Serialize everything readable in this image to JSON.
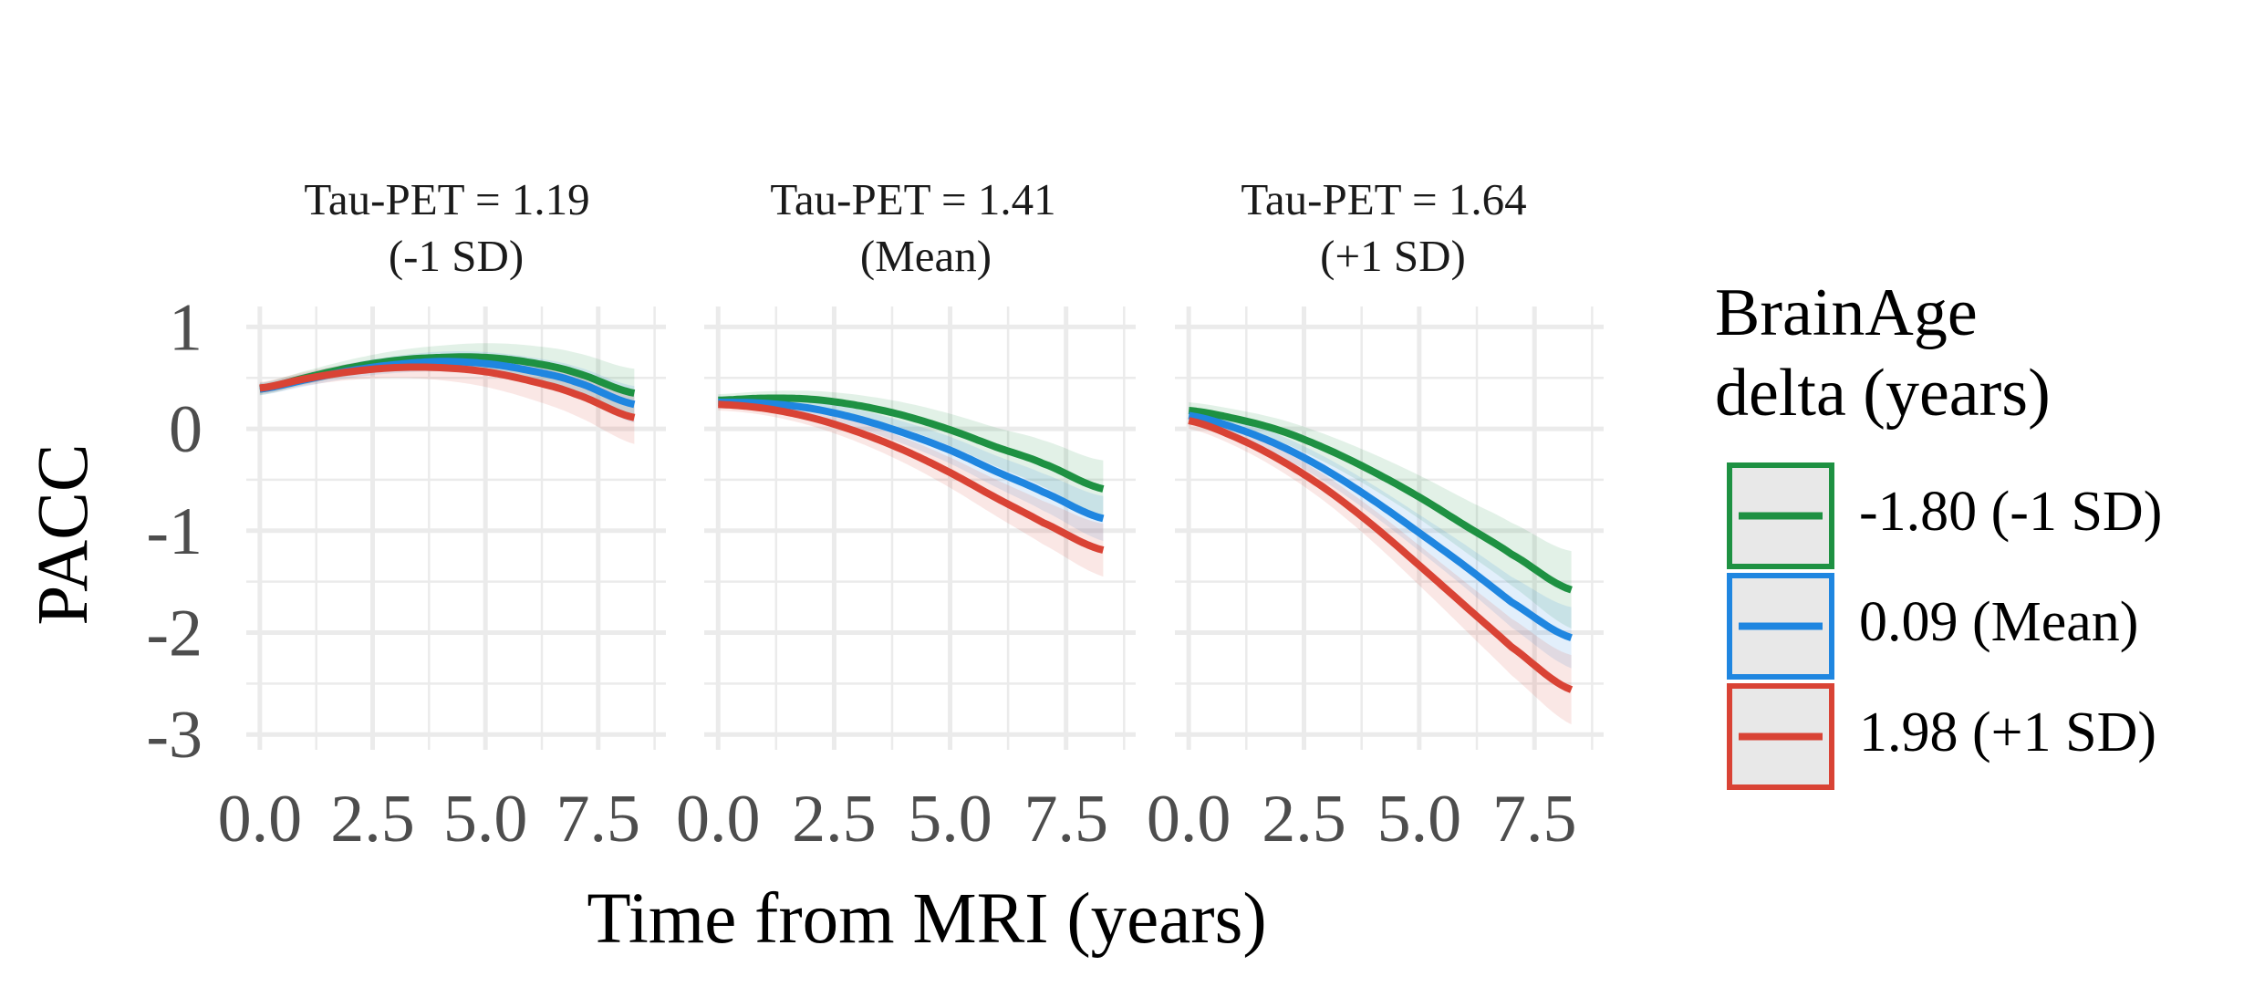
{
  "chart_data": {
    "type": "line",
    "xlabel": "Time from MRI (years)",
    "ylabel": "PACC",
    "xlim": [
      -0.3,
      9.0
    ],
    "ylim": [
      -3.15,
      1.2
    ],
    "x_ticks": [
      "0.0",
      "2.5",
      "5.0",
      "7.5"
    ],
    "y_ticks": [
      "1",
      "0",
      "-1",
      "-2",
      "-3"
    ],
    "x_tick_values": [
      0,
      2.5,
      5,
      7.5
    ],
    "y_tick_values": [
      1,
      0,
      -1,
      -2,
      -3
    ],
    "grid": true,
    "legend": {
      "title_lines": [
        "BrainAge",
        "delta (years)"
      ],
      "placement": "right",
      "entries": [
        {
          "label": "-1.80 (-1 SD)",
          "color": "#1e9142"
        },
        {
          "label": "0.09 (Mean)",
          "color": "#1f86e0"
        },
        {
          "label": "1.98 (+1 SD)",
          "color": "#d94335"
        }
      ]
    },
    "panels": [
      {
        "title_line1": "Tau-PET = 1.19",
        "title_line2": "(-1 SD)",
        "series": [
          {
            "name": "-1.80 (-1 SD)",
            "color": "#1e9142",
            "band_width": [
              0.06,
              0.24
            ],
            "x": [
              0,
              1,
              2,
              3,
              4,
              5,
              6,
              7,
              8.3
            ],
            "y": [
              0.39,
              0.5,
              0.6,
              0.67,
              0.7,
              0.7,
              0.65,
              0.55,
              0.35
            ]
          },
          {
            "name": "0.09 (Mean)",
            "color": "#1f86e0",
            "band_width": [
              0.06,
              0.18
            ],
            "x": [
              0,
              1,
              2,
              3,
              4,
              5,
              6,
              7,
              8.3
            ],
            "y": [
              0.39,
              0.48,
              0.57,
              0.63,
              0.66,
              0.64,
              0.57,
              0.46,
              0.24
            ]
          },
          {
            "name": "1.98 (+1 SD)",
            "color": "#d94335",
            "band_width": [
              0.06,
              0.26
            ],
            "x": [
              0,
              1,
              2,
              3,
              4,
              5,
              6,
              7,
              8.3
            ],
            "y": [
              0.4,
              0.49,
              0.56,
              0.6,
              0.6,
              0.56,
              0.47,
              0.34,
              0.11
            ]
          }
        ]
      },
      {
        "title_line1": "Tau-PET = 1.41",
        "title_line2": "(Mean)",
        "series": [
          {
            "name": "-1.80 (-1 SD)",
            "color": "#1e9142",
            "band_width": [
              0.06,
              0.28
            ],
            "x": [
              0,
              1,
              2,
              3,
              4,
              5,
              6,
              7,
              8.3
            ],
            "y": [
              0.28,
              0.3,
              0.29,
              0.23,
              0.13,
              -0.01,
              -0.18,
              -0.34,
              -0.59
            ]
          },
          {
            "name": "0.09 (Mean)",
            "color": "#1f86e0",
            "band_width": [
              0.06,
              0.22
            ],
            "x": [
              0,
              1,
              2,
              3,
              4,
              5,
              6,
              7,
              8.3
            ],
            "y": [
              0.26,
              0.25,
              0.2,
              0.1,
              -0.04,
              -0.21,
              -0.42,
              -0.62,
              -0.88
            ]
          },
          {
            "name": "1.98 (+1 SD)",
            "color": "#d94335",
            "band_width": [
              0.06,
              0.26
            ],
            "x": [
              0,
              1,
              2,
              3,
              4,
              5,
              6,
              7,
              8.3
            ],
            "y": [
              0.24,
              0.2,
              0.11,
              -0.03,
              -0.21,
              -0.43,
              -0.68,
              -0.92,
              -1.19
            ]
          }
        ]
      },
      {
        "title_line1": "Tau-PET = 1.64",
        "title_line2": "(+1 SD)",
        "series": [
          {
            "name": "-1.80 (-1 SD)",
            "color": "#1e9142",
            "band_width": [
              0.08,
              0.38
            ],
            "x": [
              0,
              1,
              2,
              3,
              4,
              5,
              6,
              7,
              8.3
            ],
            "y": [
              0.18,
              0.1,
              -0.02,
              -0.2,
              -0.42,
              -0.67,
              -0.95,
              -1.23,
              -1.58
            ]
          },
          {
            "name": "0.09 (Mean)",
            "color": "#1f86e0",
            "band_width": [
              0.08,
              0.3
            ],
            "x": [
              0,
              1,
              2,
              3,
              4,
              5,
              6,
              7,
              8.3
            ],
            "y": [
              0.13,
              0.01,
              -0.17,
              -0.41,
              -0.7,
              -1.02,
              -1.35,
              -1.7,
              -2.05
            ]
          },
          {
            "name": "1.98 (+1 SD)",
            "color": "#d94335",
            "band_width": [
              0.08,
              0.34
            ],
            "x": [
              0,
              1,
              2,
              3,
              4,
              5,
              6,
              7,
              8.3
            ],
            "y": [
              0.08,
              -0.08,
              -0.31,
              -0.6,
              -0.95,
              -1.34,
              -1.74,
              -2.14,
              -2.56
            ]
          }
        ]
      }
    ]
  }
}
